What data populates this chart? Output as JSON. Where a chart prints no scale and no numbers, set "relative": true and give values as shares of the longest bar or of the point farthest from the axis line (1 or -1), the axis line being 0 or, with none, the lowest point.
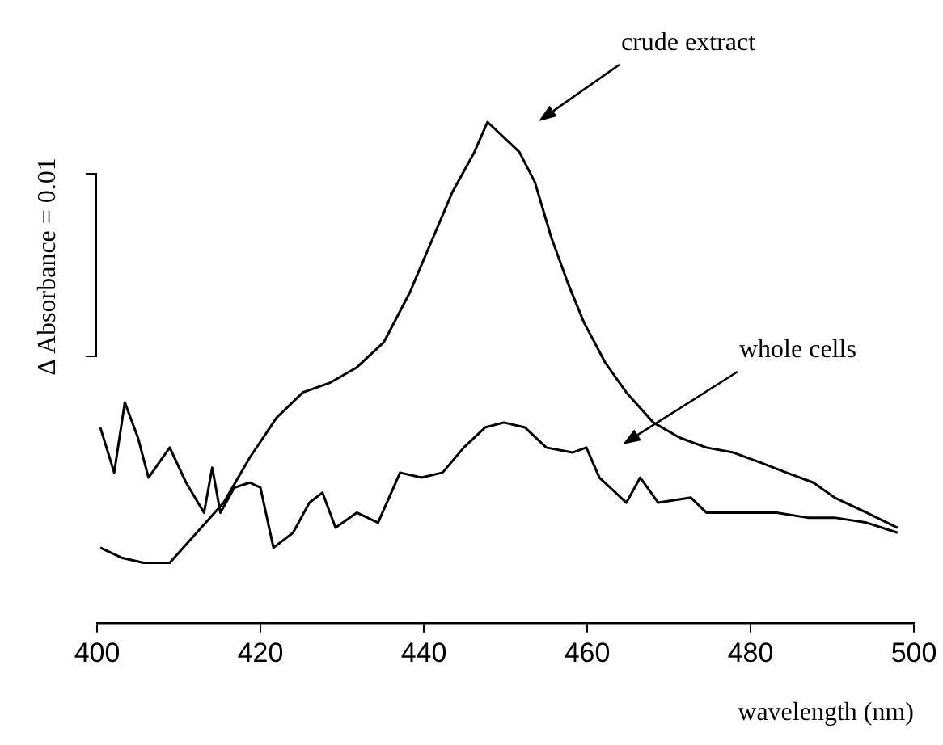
{
  "chart_data": {
    "type": "line",
    "relative": true,
    "xlabel": "wavelength (nm)",
    "ylabel": "Δ Absorbance = 0.01",
    "xlim": [
      400,
      500
    ],
    "xticks": [
      400,
      420,
      440,
      460,
      480,
      500
    ],
    "marker": "none",
    "line_style": "solid",
    "series": [
      {
        "color": "#000000",
        "x": [
          400.4,
          403,
          405.7,
          408.9,
          412.2,
          415.5,
          418.7,
          422,
          425.2,
          428.6,
          431.8,
          435.1,
          438.3,
          440.9,
          443.5,
          446.2,
          447.8,
          451.7,
          453.6,
          455.6,
          457.6,
          459.6,
          462.2,
          464.8,
          468.1,
          471.3,
          474.6,
          477.9,
          481.2,
          484.4,
          487.7,
          490.3,
          494.2,
          498
        ],
        "values": [
          0.15,
          0.13,
          0.12,
          0.12,
          0.18,
          0.24,
          0.33,
          0.41,
          0.46,
          0.48,
          0.51,
          0.56,
          0.66,
          0.76,
          0.86,
          0.94,
          1,
          0.94,
          0.88,
          0.77,
          0.68,
          0.6,
          0.52,
          0.46,
          0.4,
          0.37,
          0.35,
          0.34,
          0.32,
          0.3,
          0.28,
          0.25,
          0.22,
          0.19
        ]
      },
      {
        "color": "#000000",
        "x": [
          400.4,
          402.1,
          403.4,
          405,
          406.3,
          408.9,
          410.9,
          413.1,
          414.1,
          415.1,
          416.8,
          418.7,
          420,
          421.6,
          424,
          426,
          427.6,
          429.2,
          431.8,
          434.4,
          437.1,
          439.7,
          442.3,
          444.9,
          447.5,
          449.8,
          452.4,
          455,
          458.2,
          459.9,
          461.5,
          464.8,
          466.5,
          468.7,
          472.7,
          474.6,
          479.2,
          483.2,
          487,
          490.3,
          494.2,
          498
        ],
        "values": [
          0.39,
          0.3,
          0.44,
          0.37,
          0.29,
          0.35,
          0.28,
          0.22,
          0.31,
          0.22,
          0.27,
          0.28,
          0.27,
          0.15,
          0.18,
          0.24,
          0.26,
          0.19,
          0.22,
          0.2,
          0.3,
          0.29,
          0.3,
          0.35,
          0.39,
          0.4,
          0.39,
          0.35,
          0.34,
          0.35,
          0.29,
          0.24,
          0.29,
          0.24,
          0.25,
          0.22,
          0.22,
          0.22,
          0.21,
          0.21,
          0.2,
          0.18
        ]
      }
    ],
    "annotations": [
      "crude extract",
      "whole cells"
    ]
  }
}
